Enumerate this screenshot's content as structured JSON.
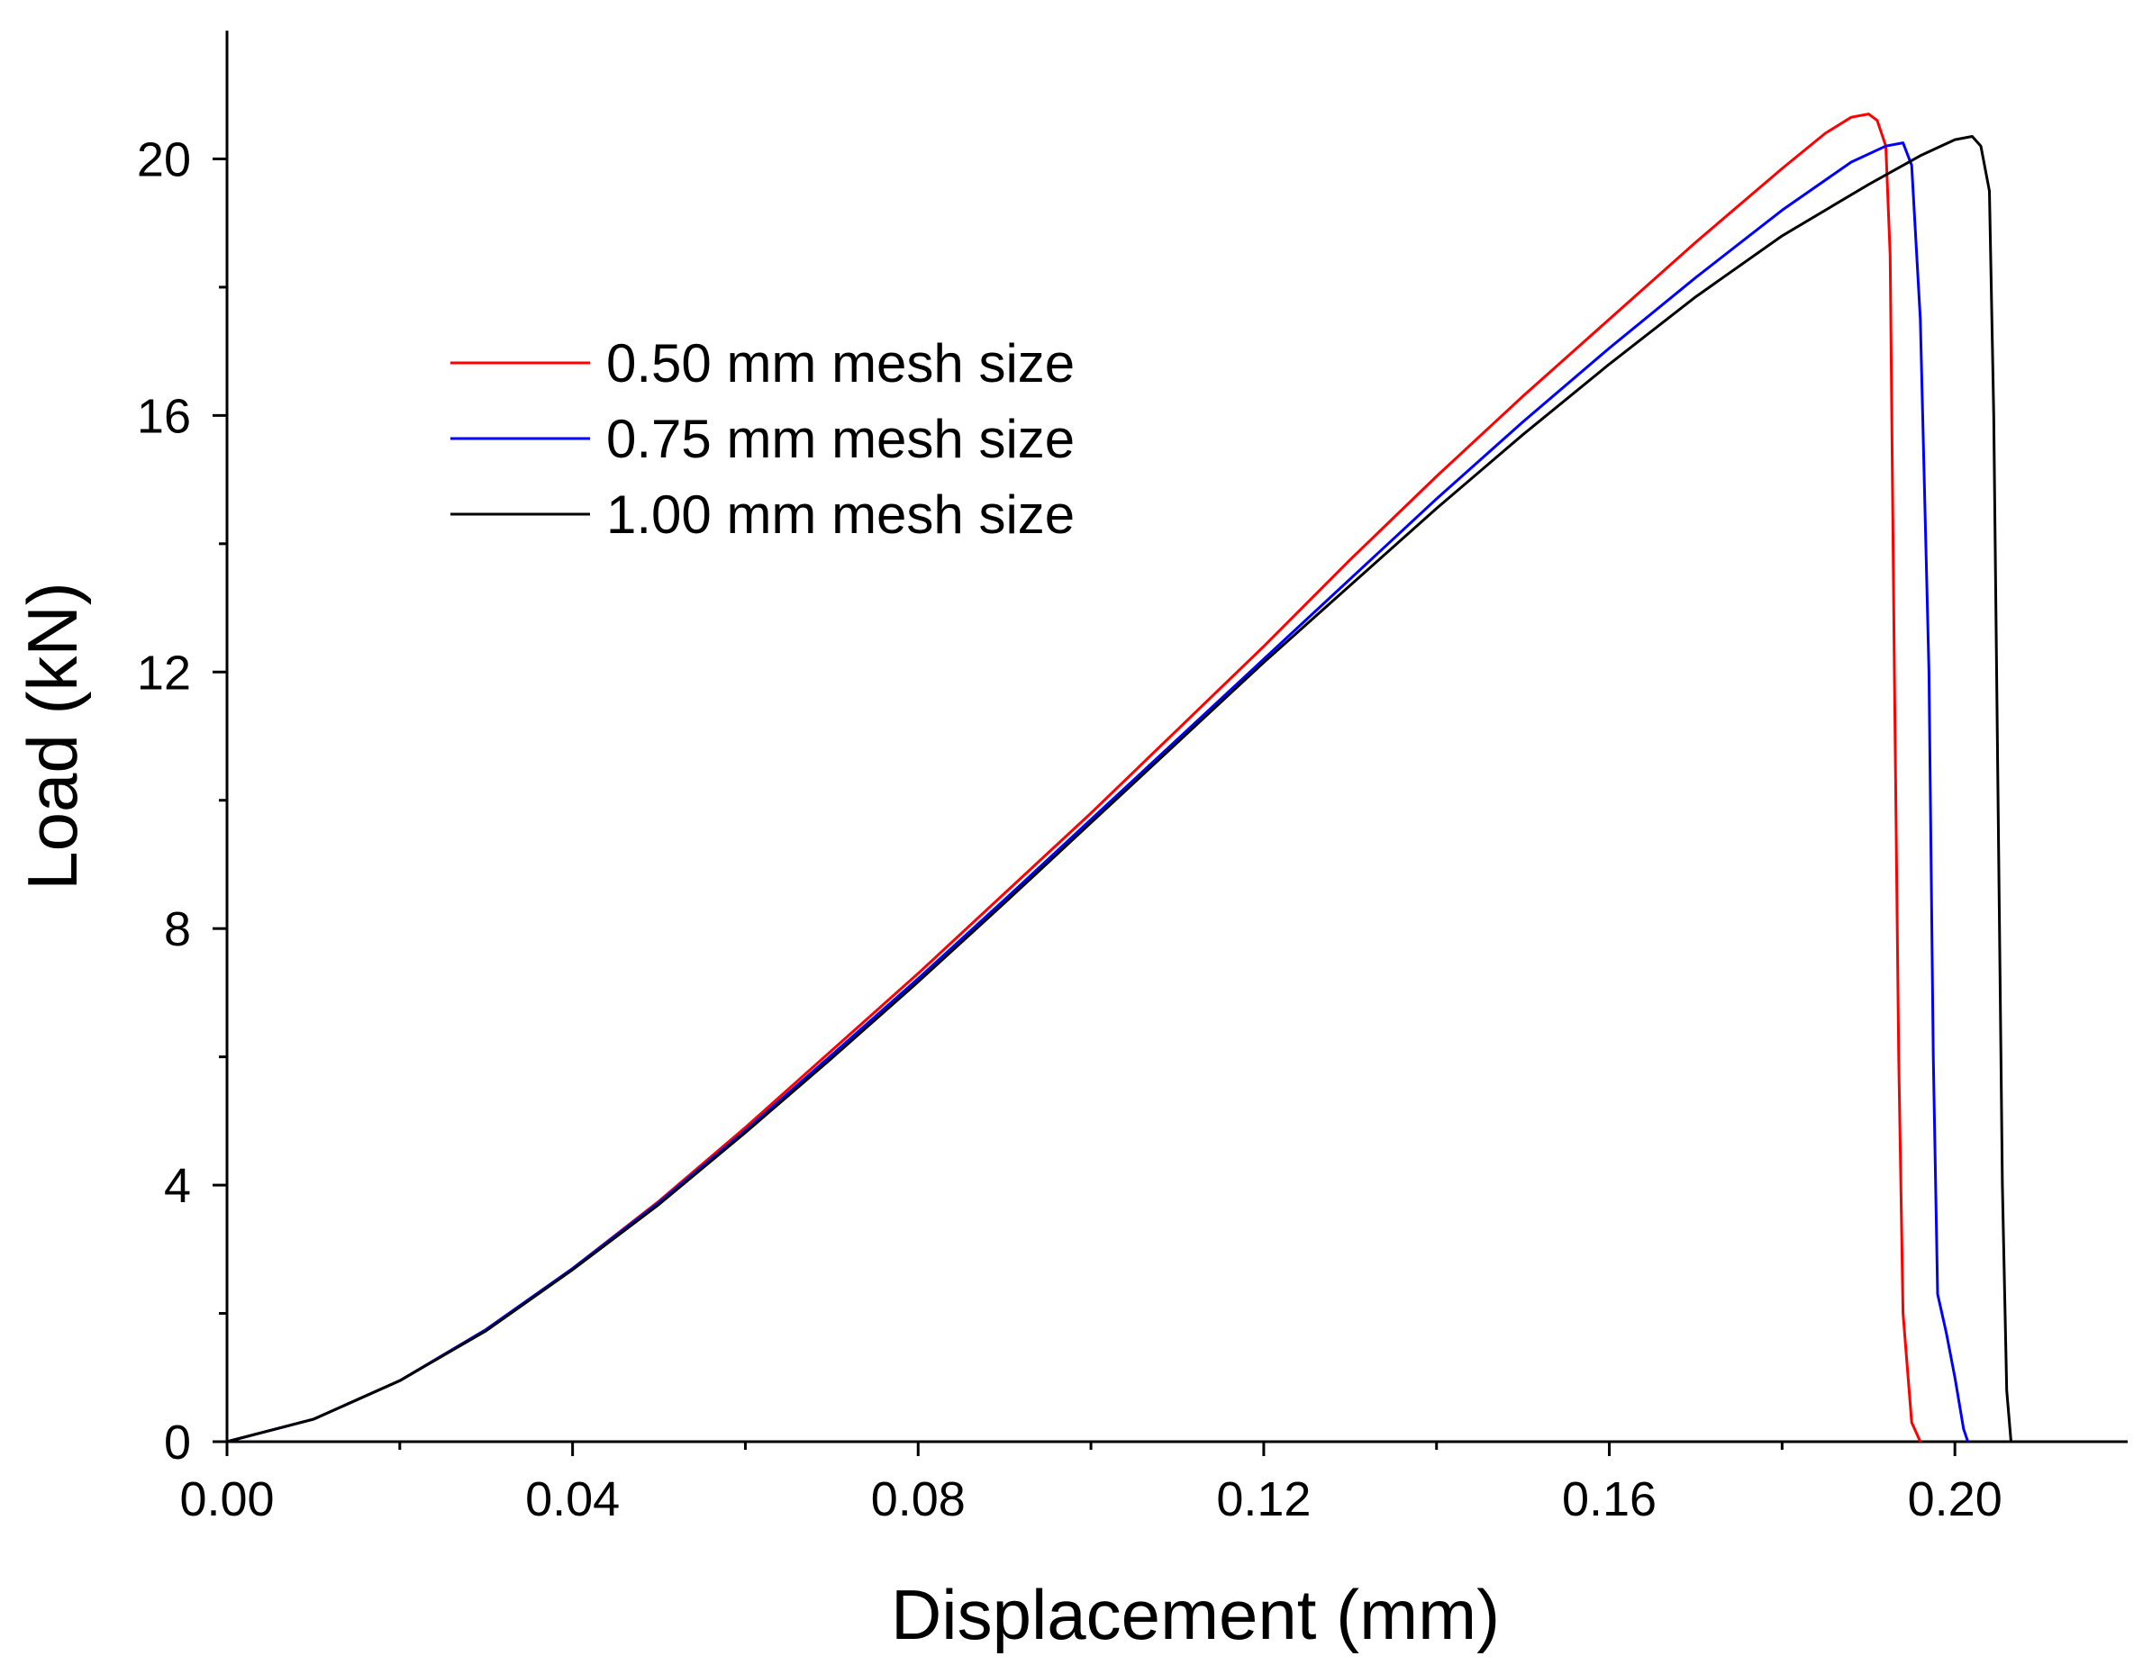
{
  "chart_data": {
    "type": "line",
    "title": "",
    "xlabel": "Displacement (mm)",
    "ylabel": "Load (kN)",
    "xlim": [
      0,
      0.22
    ],
    "ylim": [
      0,
      22
    ],
    "x_ticks": [
      0.0,
      0.04,
      0.08,
      0.12,
      0.16,
      0.2
    ],
    "x_tick_labels": [
      "0.00",
      "0.04",
      "0.08",
      "0.12",
      "0.16",
      "0.20"
    ],
    "x_minor_ticks": [
      0.02,
      0.06,
      0.1,
      0.14,
      0.18
    ],
    "y_ticks": [
      0,
      4,
      8,
      12,
      16,
      20
    ],
    "y_tick_labels": [
      "0",
      "4",
      "8",
      "12",
      "16",
      "20"
    ],
    "y_minor_ticks": [
      2,
      6,
      10,
      14,
      18
    ],
    "grid": false,
    "legend_position": "upper-left",
    "series": [
      {
        "name": "0.50 mm mesh size",
        "color": "#ff0000",
        "points": [
          [
            0.0,
            0.0
          ],
          [
            0.01,
            0.35
          ],
          [
            0.02,
            0.95
          ],
          [
            0.03,
            1.75
          ],
          [
            0.04,
            2.7
          ],
          [
            0.05,
            3.75
          ],
          [
            0.06,
            4.9
          ],
          [
            0.07,
            6.1
          ],
          [
            0.08,
            7.3
          ],
          [
            0.09,
            8.55
          ],
          [
            0.1,
            9.8
          ],
          [
            0.11,
            11.1
          ],
          [
            0.12,
            12.4
          ],
          [
            0.13,
            13.75
          ],
          [
            0.14,
            15.05
          ],
          [
            0.15,
            16.3
          ],
          [
            0.16,
            17.5
          ],
          [
            0.17,
            18.7
          ],
          [
            0.18,
            19.85
          ],
          [
            0.185,
            20.4
          ],
          [
            0.188,
            20.65
          ],
          [
            0.19,
            20.7
          ],
          [
            0.191,
            20.6
          ],
          [
            0.192,
            20.2
          ],
          [
            0.1925,
            18.5
          ],
          [
            0.193,
            12.0
          ],
          [
            0.1935,
            6.0
          ],
          [
            0.194,
            2.0
          ],
          [
            0.195,
            0.3
          ],
          [
            0.196,
            0.0
          ]
        ]
      },
      {
        "name": "0.75 mm mesh size",
        "color": "#0000ff",
        "points": [
          [
            0.0,
            0.0
          ],
          [
            0.01,
            0.35
          ],
          [
            0.02,
            0.95
          ],
          [
            0.03,
            1.75
          ],
          [
            0.04,
            2.7
          ],
          [
            0.05,
            3.73
          ],
          [
            0.06,
            4.85
          ],
          [
            0.07,
            6.03
          ],
          [
            0.08,
            7.22
          ],
          [
            0.09,
            8.45
          ],
          [
            0.1,
            9.7
          ],
          [
            0.11,
            10.95
          ],
          [
            0.12,
            12.2
          ],
          [
            0.13,
            13.45
          ],
          [
            0.14,
            14.7
          ],
          [
            0.15,
            15.9
          ],
          [
            0.16,
            17.05
          ],
          [
            0.17,
            18.15
          ],
          [
            0.18,
            19.2
          ],
          [
            0.188,
            19.95
          ],
          [
            0.192,
            20.2
          ],
          [
            0.194,
            20.25
          ],
          [
            0.195,
            19.9
          ],
          [
            0.196,
            17.5
          ],
          [
            0.197,
            12.0
          ],
          [
            0.1975,
            6.0
          ],
          [
            0.198,
            2.3
          ],
          [
            0.199,
            1.7
          ],
          [
            0.2,
            1.0
          ],
          [
            0.201,
            0.2
          ],
          [
            0.2015,
            0.0
          ]
        ]
      },
      {
        "name": "1.00 mm mesh size",
        "color": "#000000",
        "points": [
          [
            0.0,
            0.0
          ],
          [
            0.01,
            0.35
          ],
          [
            0.02,
            0.95
          ],
          [
            0.03,
            1.73
          ],
          [
            0.04,
            2.68
          ],
          [
            0.05,
            3.7
          ],
          [
            0.06,
            4.82
          ],
          [
            0.07,
            5.98
          ],
          [
            0.08,
            7.17
          ],
          [
            0.09,
            8.4
          ],
          [
            0.1,
            9.65
          ],
          [
            0.11,
            10.9
          ],
          [
            0.12,
            12.15
          ],
          [
            0.13,
            13.35
          ],
          [
            0.14,
            14.55
          ],
          [
            0.15,
            15.7
          ],
          [
            0.16,
            16.8
          ],
          [
            0.17,
            17.85
          ],
          [
            0.18,
            18.8
          ],
          [
            0.19,
            19.6
          ],
          [
            0.196,
            20.05
          ],
          [
            0.2,
            20.3
          ],
          [
            0.202,
            20.35
          ],
          [
            0.203,
            20.2
          ],
          [
            0.204,
            19.5
          ],
          [
            0.2045,
            16.0
          ],
          [
            0.205,
            10.0
          ],
          [
            0.2055,
            4.0
          ],
          [
            0.206,
            0.8
          ],
          [
            0.2065,
            0.0
          ]
        ]
      }
    ]
  }
}
